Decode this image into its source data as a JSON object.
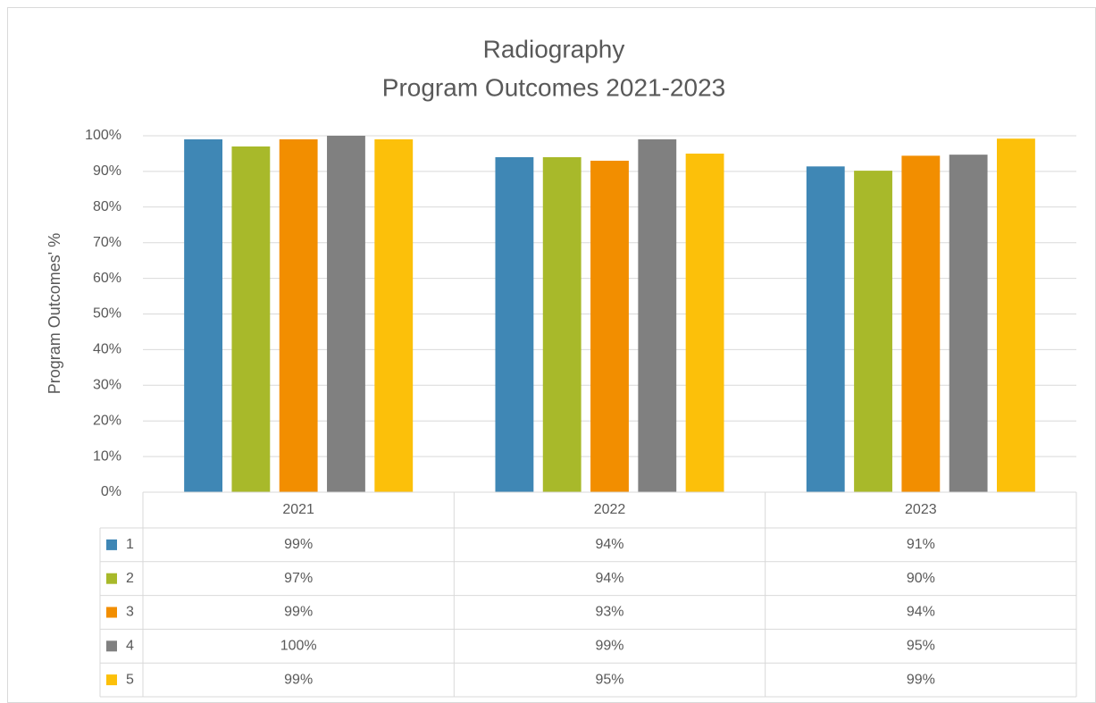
{
  "chart_data": {
    "type": "bar",
    "title": [
      "Radiography",
      "Program Outcomes 2021-2023"
    ],
    "y_label": "Program Outcomes' %",
    "categories": [
      "2021",
      "2022",
      "2023"
    ],
    "series": [
      {
        "name": "1",
        "color": "#3f87b5",
        "values": [
          99,
          94,
          91.4
        ],
        "value_labels": [
          "99%",
          "94%",
          "91%"
        ]
      },
      {
        "name": "2",
        "color": "#a8b92a",
        "values": [
          97,
          94,
          90.2
        ],
        "value_labels": [
          "97%",
          "94%",
          "90%"
        ]
      },
      {
        "name": "3",
        "color": "#f28e00",
        "values": [
          99,
          93,
          94.4
        ],
        "value_labels": [
          "99%",
          "93%",
          "94%"
        ]
      },
      {
        "name": "4",
        "color": "#808080",
        "values": [
          100,
          99,
          94.7
        ],
        "value_labels": [
          "100%",
          "99%",
          "95%"
        ]
      },
      {
        "name": "5",
        "color": "#fcc00a",
        "values": [
          99,
          95,
          99.2
        ],
        "value_labels": [
          "99%",
          "95%",
          "99%"
        ]
      }
    ],
    "ylim": [
      0,
      100
    ],
    "yticks": [
      {
        "value": 0,
        "label": "0%"
      },
      {
        "value": 10,
        "label": "10%"
      },
      {
        "value": 20,
        "label": "20%"
      },
      {
        "value": 30,
        "label": "30%"
      },
      {
        "value": 40,
        "label": "40%"
      },
      {
        "value": 50,
        "label": "50%"
      },
      {
        "value": 60,
        "label": "60%"
      },
      {
        "value": 70,
        "label": "70%"
      },
      {
        "value": 80,
        "label": "80%"
      },
      {
        "value": 90,
        "label": "90%"
      },
      {
        "value": 100,
        "label": "100%"
      }
    ],
    "grid": true,
    "legend": "table"
  }
}
